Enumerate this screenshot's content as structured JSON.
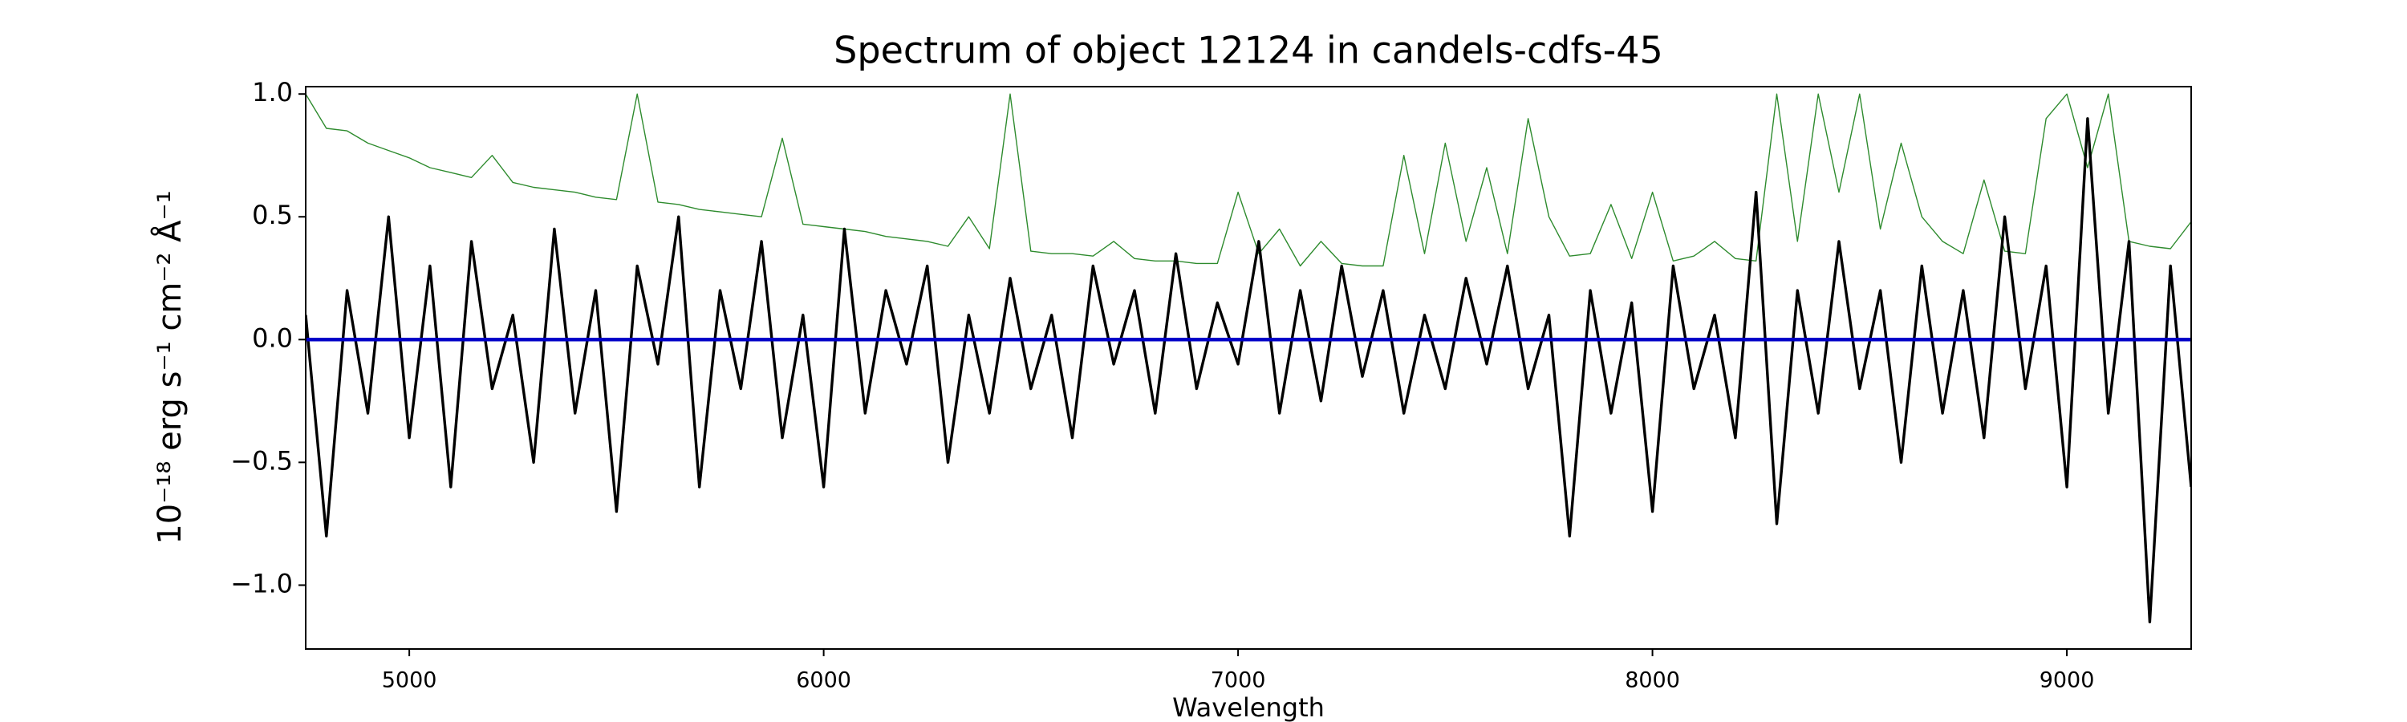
{
  "chart_data": {
    "type": "line",
    "title": "Spectrum of object 12124 in candels-cdfs-45",
    "x_label": "Wavelength",
    "y_label": "10⁻¹⁸ erg s⁻¹ cm⁻² Å⁻¹",
    "xlim": [
      4750,
      9300
    ],
    "ylim": [
      -1.26,
      1.03
    ],
    "xticks": [
      5000,
      6000,
      7000,
      8000,
      9000
    ],
    "yticks": [
      {
        "value": -1.0,
        "label": "−1.0"
      },
      {
        "value": -0.5,
        "label": "−0.5"
      },
      {
        "value": 0.0,
        "label": "0.0"
      },
      0.5,
      {
        "value": 1.0,
        "label": "1.0"
      }
    ],
    "grid": false,
    "x": [
      4750,
      4800,
      4850,
      4900,
      4950,
      5000,
      5050,
      5100,
      5150,
      5200,
      5250,
      5300,
      5350,
      5400,
      5450,
      5500,
      5550,
      5600,
      5650,
      5700,
      5750,
      5800,
      5850,
      5900,
      5950,
      6000,
      6050,
      6100,
      6150,
      6200,
      6250,
      6300,
      6350,
      6400,
      6450,
      6500,
      6550,
      6600,
      6650,
      6700,
      6750,
      6800,
      6850,
      6900,
      6950,
      7000,
      7050,
      7100,
      7150,
      7200,
      7250,
      7300,
      7350,
      7400,
      7450,
      7500,
      7550,
      7600,
      7650,
      7700,
      7750,
      7800,
      7850,
      7900,
      7950,
      8000,
      8050,
      8100,
      8150,
      8200,
      8250,
      8300,
      8350,
      8400,
      8450,
      8500,
      8550,
      8600,
      8650,
      8700,
      8750,
      8800,
      8850,
      8900,
      8950,
      9000,
      9050,
      9100,
      9150,
      9200,
      9250,
      9300
    ],
    "series": [
      {
        "color": "#000000",
        "values": [
          0.1,
          -0.8,
          0.2,
          -0.3,
          0.5,
          -0.4,
          0.3,
          -0.6,
          0.4,
          -0.2,
          0.1,
          -0.5,
          0.45,
          -0.3,
          0.2,
          -0.7,
          0.3,
          -0.1,
          0.5,
          -0.6,
          0.2,
          -0.2,
          0.4,
          -0.4,
          0.1,
          -0.6,
          0.45,
          -0.3,
          0.2,
          -0.1,
          0.3,
          -0.5,
          0.1,
          -0.3,
          0.25,
          -0.2,
          0.1,
          -0.4,
          0.3,
          -0.1,
          0.2,
          -0.3,
          0.35,
          -0.2,
          0.15,
          -0.1,
          0.4,
          -0.3,
          0.2,
          -0.25,
          0.3,
          -0.15,
          0.2,
          -0.3,
          0.1,
          -0.2,
          0.25,
          -0.1,
          0.3,
          -0.2,
          0.1,
          -0.8,
          0.2,
          -0.3,
          0.15,
          -0.7,
          0.3,
          -0.2,
          0.1,
          -0.4,
          0.6,
          -0.75,
          0.2,
          -0.3,
          0.4,
          -0.2,
          0.2,
          -0.5,
          0.3,
          -0.3,
          0.2,
          -0.4,
          0.5,
          -0.2,
          0.3,
          -0.6,
          0.9,
          -0.3,
          0.4,
          -1.15,
          0.3,
          -0.6
        ]
      },
      {
        "color": "#2e8b2e",
        "values": [
          1.0,
          0.86,
          0.85,
          0.8,
          0.77,
          0.74,
          0.7,
          0.68,
          0.66,
          0.75,
          0.64,
          0.62,
          0.61,
          0.6,
          0.58,
          0.57,
          1.0,
          0.56,
          0.55,
          0.53,
          0.52,
          0.51,
          0.5,
          0.82,
          0.47,
          0.46,
          0.45,
          0.44,
          0.42,
          0.41,
          0.4,
          0.38,
          0.5,
          0.37,
          1.0,
          0.36,
          0.35,
          0.35,
          0.34,
          0.4,
          0.33,
          0.32,
          0.32,
          0.31,
          0.31,
          0.6,
          0.35,
          0.45,
          0.3,
          0.4,
          0.31,
          0.3,
          0.3,
          0.75,
          0.35,
          0.8,
          0.4,
          0.7,
          0.35,
          0.9,
          0.5,
          0.34,
          0.35,
          0.55,
          0.33,
          0.6,
          0.32,
          0.34,
          0.4,
          0.33,
          0.32,
          1.0,
          0.4,
          1.0,
          0.6,
          1.0,
          0.45,
          0.8,
          0.5,
          0.4,
          0.35,
          0.65,
          0.36,
          0.35,
          0.9,
          1.0,
          0.7,
          1.0,
          0.4,
          0.38,
          0.37,
          0.48
        ]
      },
      {
        "color": "#0000c8",
        "x": [
          4750,
          9300
        ],
        "values": [
          0,
          0
        ]
      }
    ]
  }
}
